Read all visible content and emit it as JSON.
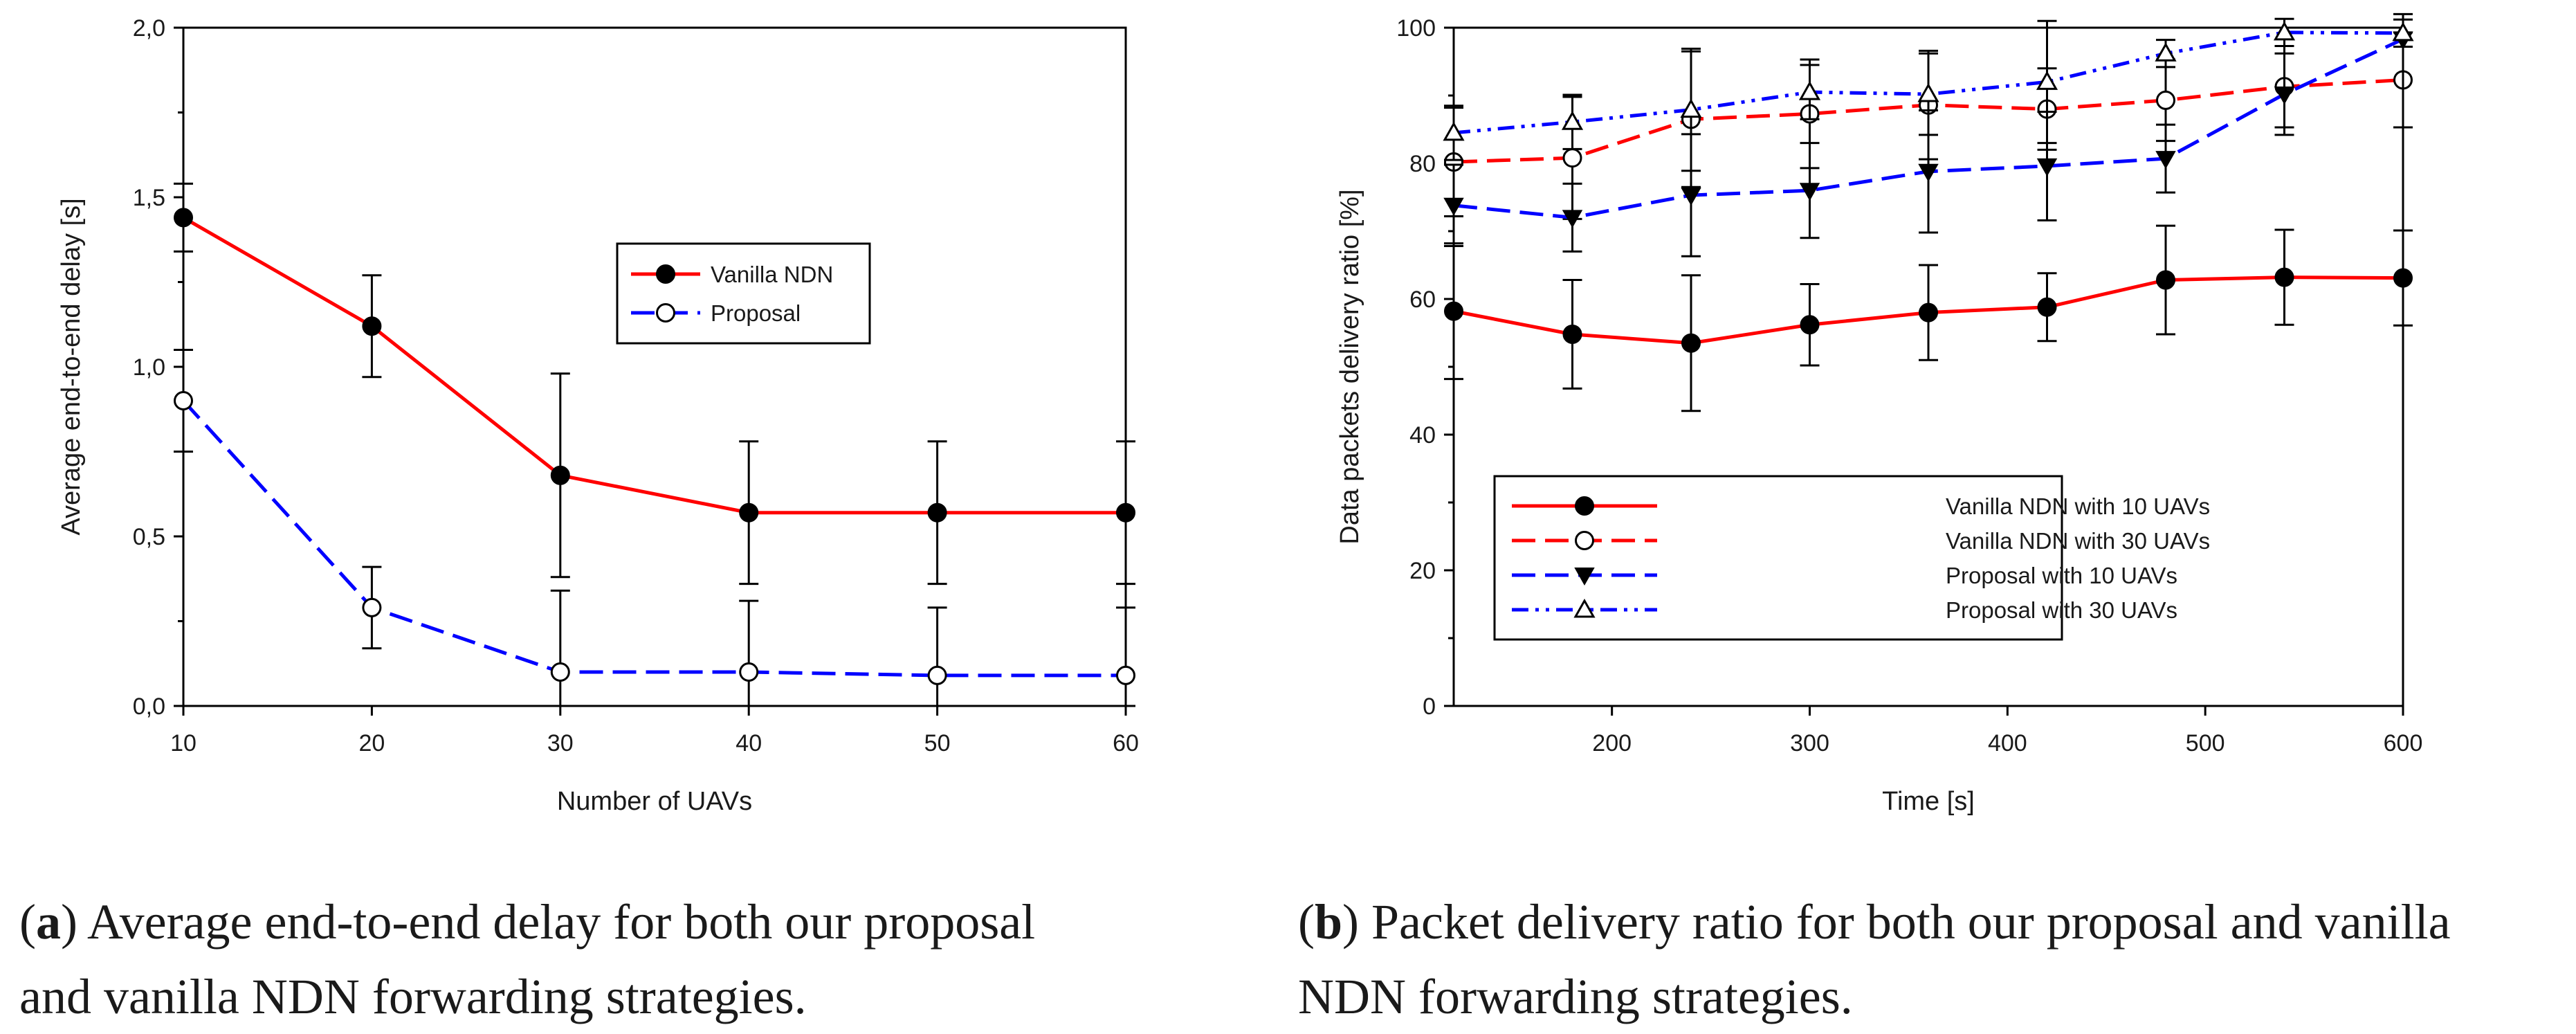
{
  "colors": {
    "red": "#ff0000",
    "blue": "#0000ff",
    "axis": "#000000"
  },
  "chart_data": [
    {
      "type": "line",
      "ylabel": "Average end-to-end delay [s]",
      "xlabel": "Number of UAVs",
      "xlim": [
        10,
        60
      ],
      "ylim": [
        0,
        2
      ],
      "xticks": [
        "10",
        "20",
        "30",
        "40",
        "50",
        "60"
      ],
      "yticks": [
        "0,0",
        "0,5",
        "1,0",
        "1,5",
        "2,0"
      ],
      "legend_position": "upper-right",
      "series": [
        {
          "name": "Vanilla NDN",
          "marker": "filled-circle",
          "color": "red",
          "dash": "solid",
          "x": [
            10,
            20,
            30,
            40,
            50,
            60
          ],
          "y": [
            1.44,
            1.12,
            0.68,
            0.57,
            0.57,
            0.57
          ],
          "err": [
            0.1,
            0.15,
            0.3,
            0.21,
            0.21,
            0.21
          ]
        },
        {
          "name": "Proposal",
          "marker": "open-circle",
          "color": "blue",
          "dash": "dashed",
          "x": [
            10,
            20,
            30,
            40,
            50,
            60
          ],
          "y": [
            0.9,
            0.29,
            0.1,
            0.1,
            0.09,
            0.09
          ],
          "err": [
            0.15,
            0.12,
            0.24,
            0.21,
            0.2,
            0.2
          ]
        }
      ]
    },
    {
      "type": "line",
      "ylabel": "Data packets delivery ratio [%]",
      "xlabel": "Time [s]",
      "xlim": [
        120,
        600
      ],
      "ylim": [
        0,
        100
      ],
      "xticks": [
        "200",
        "300",
        "400",
        "500",
        "600"
      ],
      "yticks": [
        "0",
        "20",
        "40",
        "60",
        "80",
        "100"
      ],
      "legend_position": "lower-left",
      "series": [
        {
          "name": "Vanilla NDN with 10 UAVs",
          "marker": "filled-circle",
          "color": "red",
          "dash": "solid",
          "x": [
            120,
            180,
            240,
            300,
            360,
            420,
            480,
            540,
            600
          ],
          "y": [
            58.2,
            54.8,
            53.5,
            56.2,
            58.0,
            58.8,
            62.8,
            63.2,
            63.1
          ],
          "err": [
            10,
            8,
            10,
            6,
            7,
            5,
            8,
            7,
            7
          ]
        },
        {
          "name": "Vanilla NDN with 30 UAVs",
          "marker": "open-circle",
          "color": "red",
          "dash": "dashed",
          "x": [
            120,
            180,
            240,
            300,
            360,
            420,
            480,
            540,
            600
          ],
          "y": [
            80.2,
            80.8,
            86.5,
            87.3,
            88.6,
            88.0,
            89.3,
            91.3,
            92.3
          ],
          "err": [
            8,
            9,
            10,
            8,
            8,
            6,
            6,
            6,
            7
          ]
        },
        {
          "name": "Proposal with 10 UAVs",
          "marker": "filled-triangle-down",
          "color": "blue",
          "dash": "dashed",
          "x": [
            120,
            180,
            240,
            300,
            360,
            420,
            480,
            540,
            600
          ],
          "y": [
            73.8,
            72.0,
            75.3,
            76.0,
            78.8,
            79.6,
            80.7,
            90.2,
            98.3
          ],
          "err": [
            6,
            5,
            9,
            7,
            9,
            8,
            5,
            6,
            13
          ]
        },
        {
          "name": "Proposal with 30 UAVs",
          "marker": "open-triangle-up",
          "color": "blue",
          "dash": "dashdotdot",
          "x": [
            120,
            180,
            240,
            300,
            360,
            420,
            480,
            540,
            600
          ],
          "y": [
            84.5,
            86.1,
            87.9,
            90.5,
            90.2,
            92.0,
            96.2,
            99.3,
            99.2
          ],
          "err": [
            4,
            4,
            9,
            4,
            6,
            9,
            2,
            2,
            2
          ]
        }
      ]
    }
  ],
  "captions": {
    "a": {
      "label": "a",
      "line1": ") Average end-to-end delay for both our proposal",
      "line2": "and vanilla NDN forwarding strategies."
    },
    "b": {
      "label": "b",
      "line1": ") Packet delivery ratio for both our proposal and vanilla",
      "line2": "NDN forwarding strategies."
    }
  }
}
